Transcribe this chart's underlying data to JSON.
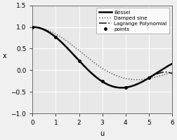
{
  "title": "",
  "xlabel": "u",
  "ylabel": "x",
  "xlim": [
    0,
    6
  ],
  "ylim": [
    -1,
    1.5
  ],
  "yticks": [
    -1,
    -0.5,
    0,
    0.5,
    1,
    1.5
  ],
  "xticks": [
    0,
    1,
    2,
    3,
    4,
    5,
    6
  ],
  "bessel_color": "#000000",
  "damped_color": "#555555",
  "lagrange_color": "#222222",
  "points_color": "#000000",
  "bg_color": "#e8e8e8",
  "legend_entries": [
    "Bessel",
    "Damped sine",
    "Lagrange Polynomial",
    "points"
  ],
  "sample_points_u": [
    0,
    1,
    2,
    3,
    4,
    5
  ],
  "figsize": [
    2.52,
    2.0
  ],
  "dpi": 100
}
